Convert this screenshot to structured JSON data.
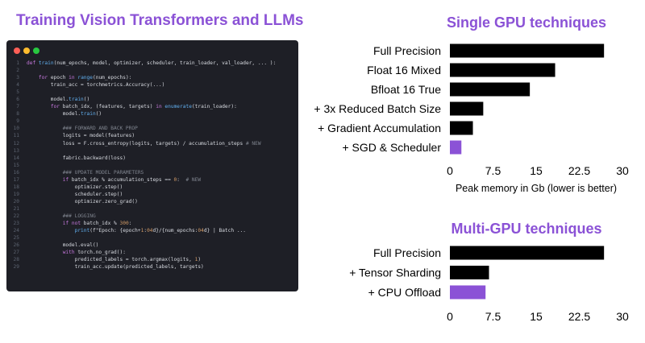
{
  "page_title": "Training Vision Transformers and LLMs",
  "code": {
    "lines": [
      "def train(num_epochs, model, optimizer, scheduler, train_loader, val_loader, ... ):",
      "",
      "    for epoch in range(num_epochs):",
      "        train_acc = torchmetrics.Accuracy(...)",
      "",
      "        model.train()",
      "        for batch_idx, (features, targets) in enumerate(train_loader):",
      "            model.train()",
      "",
      "            ### FORWARD AND BACK PROP",
      "            logits = model(features)",
      "            loss = F.cross_entropy(logits, targets) / accumulation_steps # NEW",
      "",
      "            fabric.backward(loss)",
      "",
      "            ### UPDATE MODEL PARAMETERS",
      "            if batch_idx % accumulation_steps == 0:  # NEW",
      "                optimizer.step()",
      "                scheduler.step()",
      "                optimizer.zero_grad()",
      "",
      "            ### LOGGING",
      "            if not batch_idx % 300:",
      "                print(f\"Epoch: {epoch+1:04d}/{num_epochs:04d} | Batch ...",
      "",
      "            model.eval()",
      "            with torch.no_grad():",
      "                predicted_labels = torch.argmax(logits, 1)",
      "                train_acc.update(predicted_labels, targets)"
    ]
  },
  "colors": {
    "accent": "#8b52d6",
    "bar_default": "#000000",
    "bar_highlight": "#8b52d6",
    "editor_bg": "#1e1f26"
  },
  "chart_data": [
    {
      "type": "bar",
      "orientation": "horizontal",
      "title": "Single GPU techniques",
      "categories": [
        "Full Precision",
        "Float 16 Mixed",
        "Bfloat 16 True",
        "+ 3x Reduced Batch Size",
        "+ Gradient Accumulation",
        "+ SGD & Scheduler"
      ],
      "values": [
        26.8,
        18.3,
        13.9,
        5.8,
        4.0,
        2.0
      ],
      "highlight": [
        false,
        false,
        false,
        false,
        false,
        true
      ],
      "xlabel": "Peak memory in Gb (lower is better)",
      "ylabel": "",
      "xlim": [
        0,
        30
      ],
      "xticks": [
        "0",
        "7.5",
        "15",
        "22.5",
        "30"
      ],
      "grid": false
    },
    {
      "type": "bar",
      "orientation": "horizontal",
      "title": "Multi-GPU techniques",
      "categories": [
        "Full Precision",
        "+ Tensor Sharding",
        "+ CPU Offload"
      ],
      "values": [
        26.8,
        6.8,
        6.2
      ],
      "highlight": [
        false,
        false,
        true
      ],
      "xlabel": "",
      "ylabel": "",
      "xlim": [
        0,
        30
      ],
      "xticks": [
        "0",
        "7.5",
        "15",
        "22.5",
        "30"
      ],
      "grid": false
    }
  ]
}
